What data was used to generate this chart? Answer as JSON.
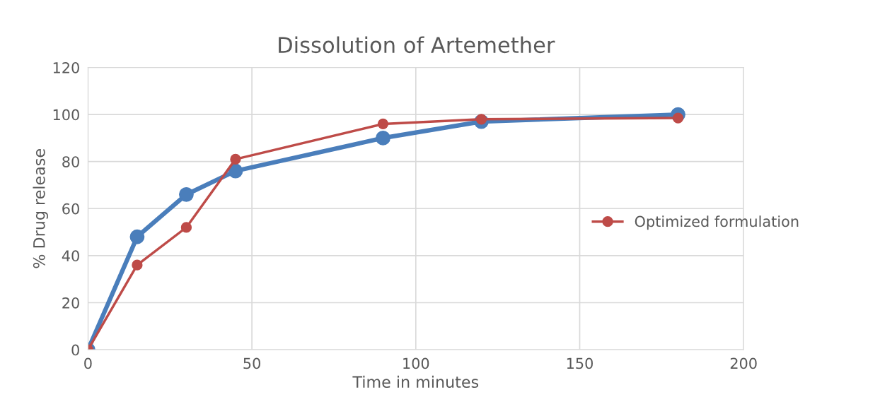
{
  "chart_data": {
    "type": "line",
    "title": "Dissolution of Artemether",
    "xlabel": "Time in minutes",
    "ylabel": "% Drug release",
    "x": [
      0,
      15,
      30,
      45,
      90,
      120,
      180
    ],
    "series": [
      {
        "color": "#4a7ebb",
        "values": [
          0,
          48,
          66,
          76,
          90,
          97,
          100
        ]
      },
      {
        "name": "Optimized formulation",
        "color": "#be4b48",
        "values": [
          0,
          36,
          52,
          81,
          96,
          98,
          98.5
        ]
      }
    ],
    "xlim": [
      0,
      200
    ],
    "xticks": [
      0,
      50,
      100,
      150,
      200
    ],
    "ylim": [
      0,
      120
    ],
    "yticks": [
      0,
      20,
      40,
      60,
      80,
      100,
      120
    ],
    "grid": true,
    "legend": "right",
    "marker": "circle",
    "line_style": "solid"
  }
}
